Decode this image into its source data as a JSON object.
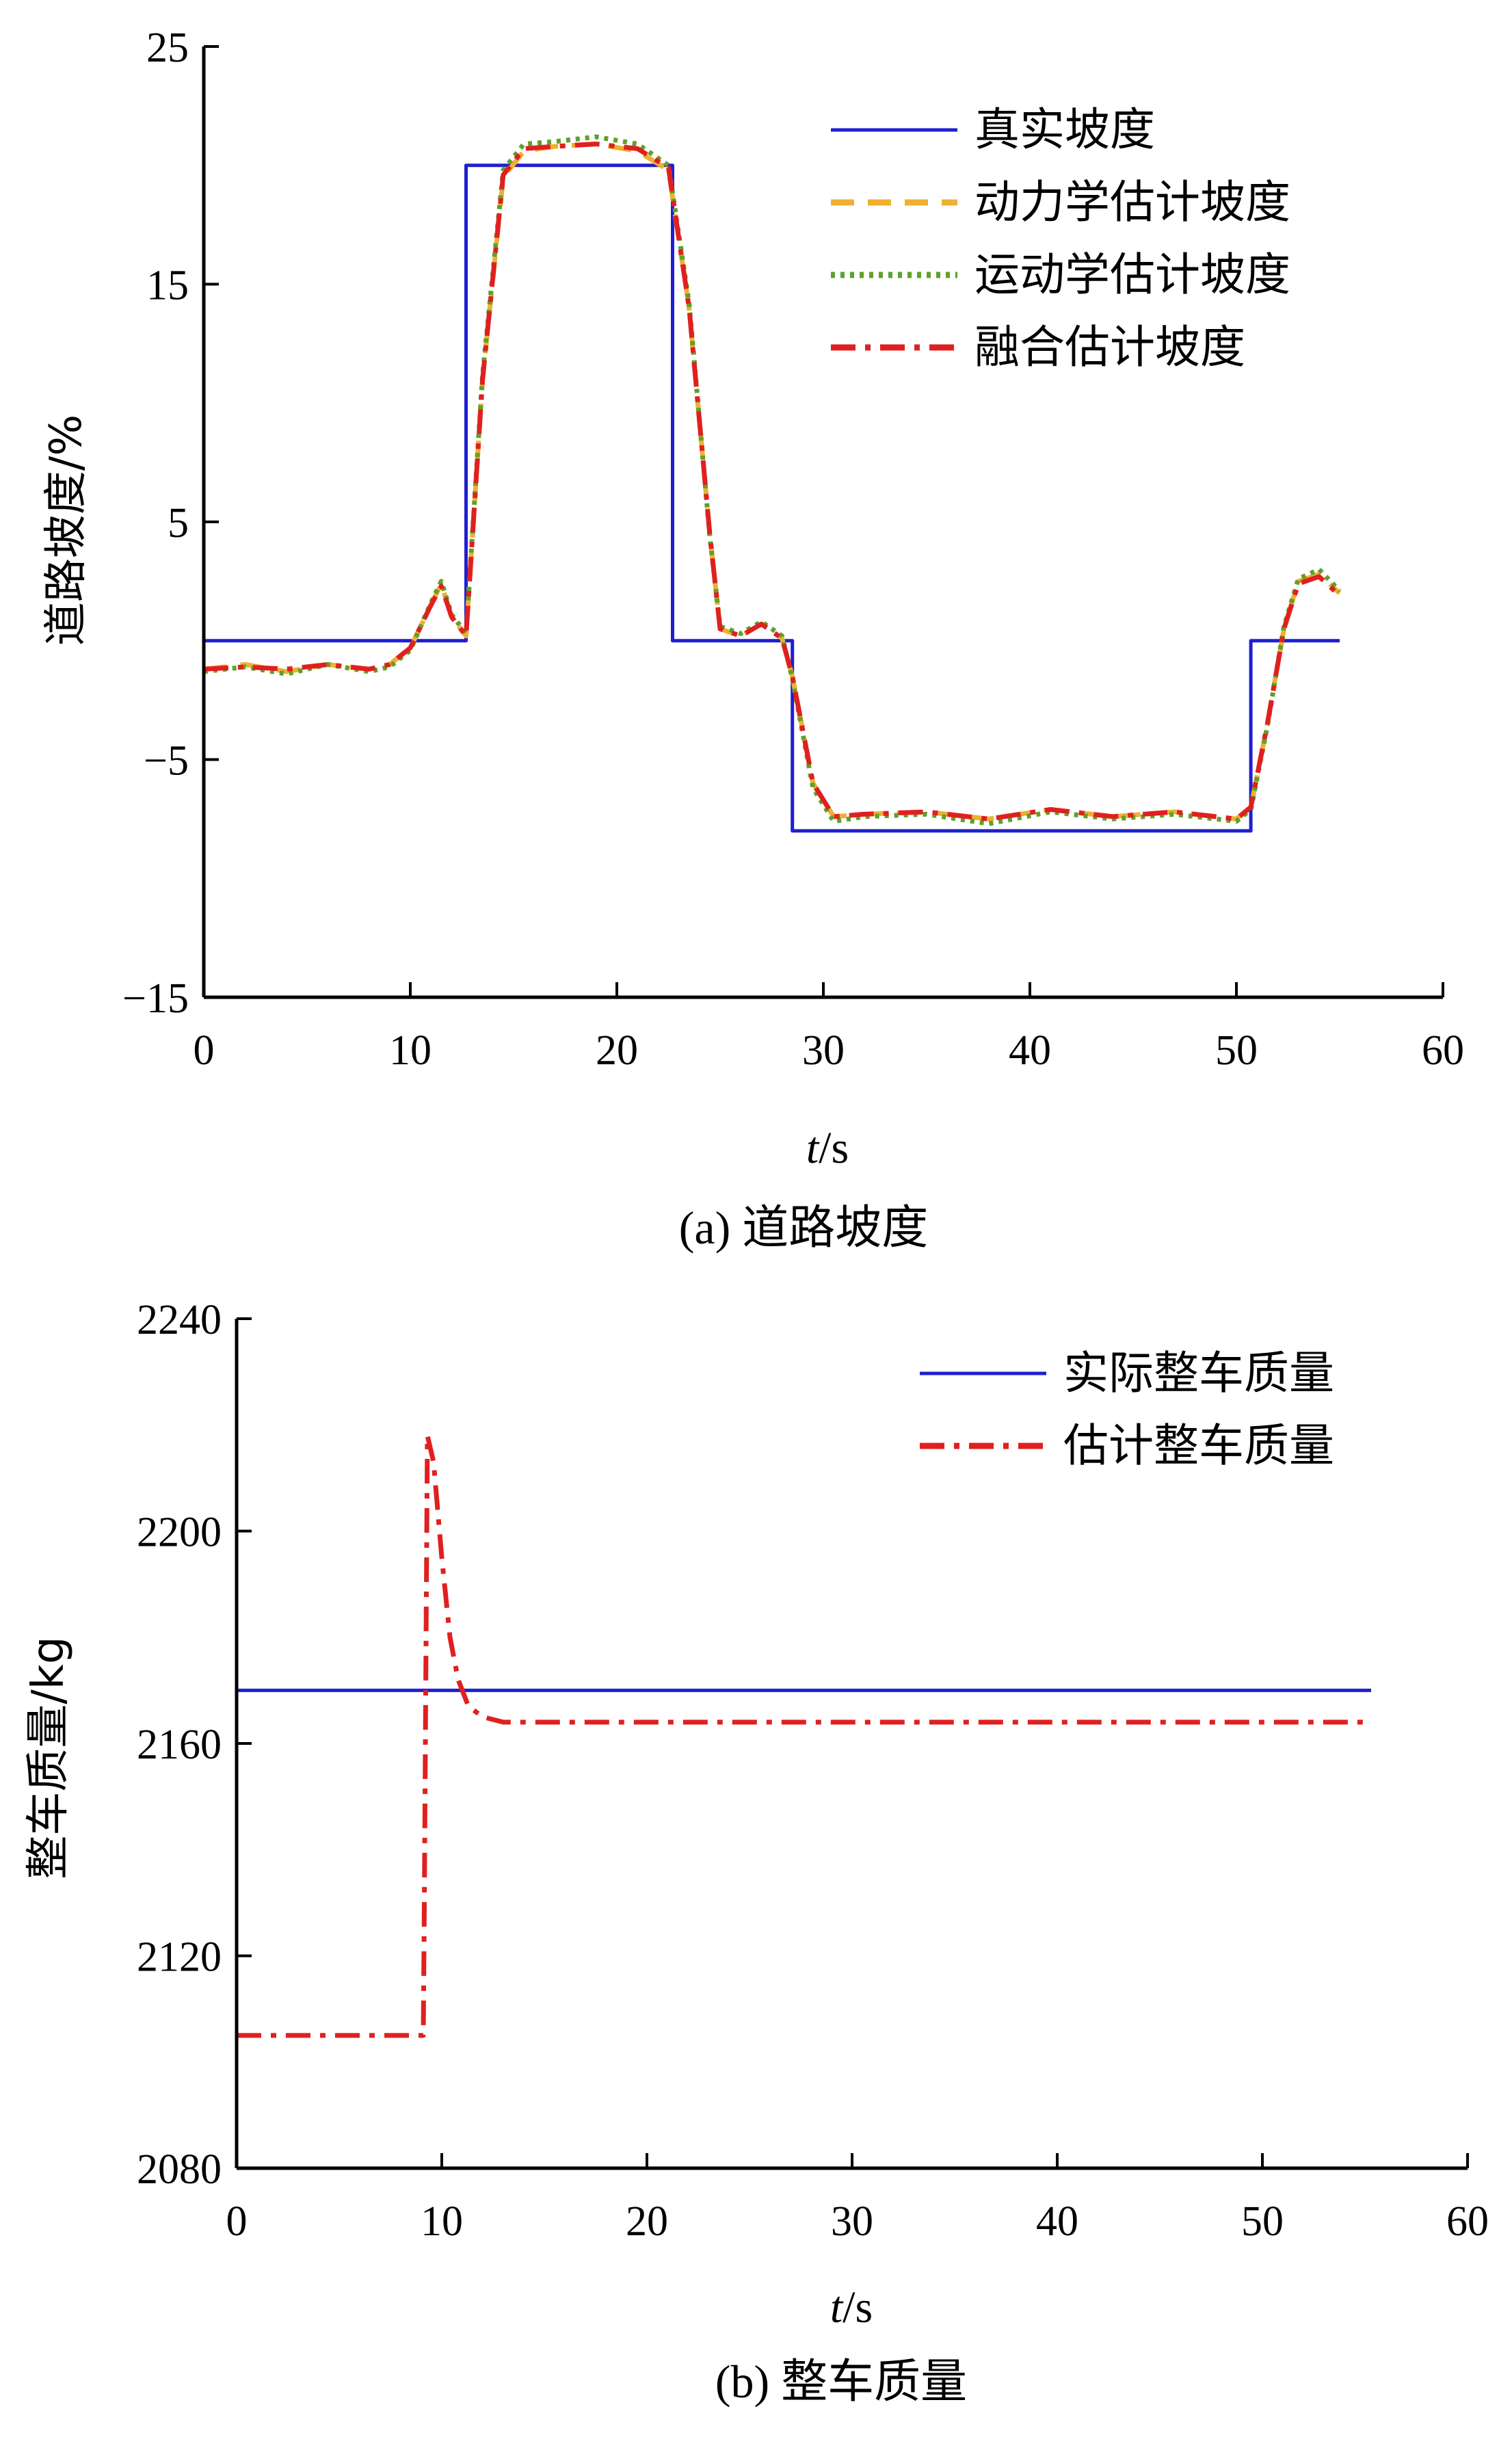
{
  "charts": [
    {
      "caption": "(a) 道路坡度",
      "xlabel_italic": "t",
      "xlabel_unit": "/s",
      "ylabel": "道路坡度/%",
      "x_ticks": [
        "0",
        "10",
        "20",
        "30",
        "40",
        "50",
        "60"
      ],
      "y_ticks": [
        "25",
        "15",
        "5",
        "−5",
        "−15"
      ],
      "legend": [
        "真实坡度",
        "动力学估计坡度",
        "运动学估计坡度",
        "融合估计坡度"
      ]
    },
    {
      "caption": "(b) 整车质量",
      "xlabel_italic": "t",
      "xlabel_unit": "/s",
      "ylabel": "整车质量/kg",
      "x_ticks": [
        "0",
        "10",
        "20",
        "30",
        "40",
        "50",
        "60"
      ],
      "y_ticks": [
        "2240",
        "2200",
        "2160",
        "2120",
        "2080"
      ],
      "legend": [
        "实际整车质量",
        "估计整车质量"
      ]
    }
  ],
  "chart_data": [
    {
      "type": "line",
      "title": "(a) 道路坡度",
      "xlabel": "t/s",
      "ylabel": "道路坡度/%",
      "xlim": [
        0,
        60
      ],
      "ylim": [
        -15,
        25
      ],
      "grid": false,
      "legend_position": "top-right",
      "series": [
        {
          "name": "真实坡度",
          "color": "#1f1fd1",
          "style": "solid",
          "x": [
            0,
            12.7,
            12.7,
            22.7,
            22.7,
            28.5,
            28.5,
            50.7,
            50.7,
            55
          ],
          "y": [
            0,
            0,
            20,
            20,
            0,
            0,
            -8,
            -8,
            0,
            0
          ]
        },
        {
          "name": "动力学估计坡度",
          "color": "#f0b030",
          "style": "dashed",
          "x": [
            0,
            2,
            4,
            6,
            8,
            9,
            10,
            11,
            11.5,
            12,
            12.7,
            13.5,
            14.5,
            15.5,
            17,
            19,
            21,
            22.5,
            23.5,
            24.5,
            25,
            26,
            27,
            28,
            28.5,
            29.5,
            30.5,
            32,
            35,
            38,
            41,
            44,
            47,
            50,
            50.7,
            51.5,
            52.3,
            53,
            54,
            55
          ],
          "y": [
            -1.2,
            -1.0,
            -1.3,
            -1.0,
            -1.2,
            -1.0,
            -0.3,
            1.5,
            2.4,
            1.0,
            0.2,
            11,
            19.5,
            20.6,
            20.8,
            20.9,
            20.6,
            19.8,
            14,
            4.5,
            0.5,
            0.2,
            0.7,
            0.1,
            -1.5,
            -6.0,
            -7.4,
            -7.3,
            -7.2,
            -7.5,
            -7.1,
            -7.4,
            -7.2,
            -7.5,
            -7.0,
            -3.5,
            0.5,
            2.5,
            2.8,
            2.0
          ]
        },
        {
          "name": "运动学估计坡度",
          "color": "#5fa02a",
          "style": "dotted",
          "x": [
            0,
            2,
            4,
            6,
            8,
            9,
            10,
            11,
            11.5,
            12,
            12.7,
            13.5,
            14.5,
            15.5,
            17,
            19,
            21,
            22.5,
            23.5,
            24.5,
            25,
            26,
            27,
            28,
            28.5,
            29.5,
            30.5,
            32,
            35,
            38,
            41,
            44,
            47,
            50,
            50.7,
            51.5,
            52.3,
            53,
            54,
            55
          ],
          "y": [
            -1.3,
            -1.1,
            -1.4,
            -1.0,
            -1.3,
            -1.1,
            -0.4,
            1.6,
            2.5,
            1.1,
            0.3,
            11.2,
            19.8,
            20.9,
            21.0,
            21.2,
            20.9,
            20.0,
            14.2,
            4.4,
            0.6,
            0.3,
            0.8,
            0.2,
            -1.6,
            -6.2,
            -7.6,
            -7.4,
            -7.3,
            -7.7,
            -7.2,
            -7.5,
            -7.3,
            -7.6,
            -7.1,
            -3.6,
            0.6,
            2.6,
            3.0,
            2.1
          ]
        },
        {
          "name": "融合估计坡度",
          "color": "#e02020",
          "style": "dashdot",
          "x": [
            0,
            2,
            4,
            6,
            8,
            9,
            10,
            11,
            11.5,
            12,
            12.7,
            13.5,
            14.5,
            15.5,
            17,
            19,
            21,
            22.5,
            23.5,
            24.5,
            25,
            26,
            27,
            28,
            28.5,
            29.5,
            30.5,
            32,
            35,
            38,
            41,
            44,
            47,
            50,
            50.7,
            51.5,
            52.3,
            53,
            54,
            55
          ],
          "y": [
            -1.2,
            -1.1,
            -1.2,
            -1.0,
            -1.2,
            -1.0,
            -0.3,
            1.5,
            2.3,
            1.0,
            0.2,
            11.0,
            19.6,
            20.7,
            20.8,
            20.9,
            20.7,
            19.9,
            14.0,
            4.5,
            0.5,
            0.2,
            0.7,
            0.1,
            -1.5,
            -6.0,
            -7.4,
            -7.3,
            -7.2,
            -7.5,
            -7.1,
            -7.4,
            -7.2,
            -7.5,
            -7.0,
            -3.5,
            0.5,
            2.4,
            2.7,
            1.9
          ]
        }
      ]
    },
    {
      "type": "line",
      "title": "(b) 整车质量",
      "xlabel": "t/s",
      "ylabel": "整车质量/kg",
      "xlim": [
        0,
        60
      ],
      "ylim": [
        2080,
        2240
      ],
      "grid": false,
      "legend_position": "top-right",
      "series": [
        {
          "name": "实际整车质量",
          "color": "#1f1fd1",
          "style": "solid",
          "x": [
            0,
            55.3
          ],
          "y": [
            2170,
            2170
          ]
        },
        {
          "name": "估计整车质量",
          "color": "#e02020",
          "style": "dashdot",
          "x": [
            0,
            9.1,
            9.15,
            9.3,
            9.6,
            10.0,
            10.4,
            10.8,
            11.3,
            12.0,
            13.0,
            15.0,
            20.0,
            55.3
          ],
          "y": [
            2105,
            2105,
            2130,
            2218,
            2213,
            2195,
            2180,
            2172,
            2167,
            2165,
            2164,
            2164,
            2164,
            2164
          ]
        }
      ]
    }
  ]
}
